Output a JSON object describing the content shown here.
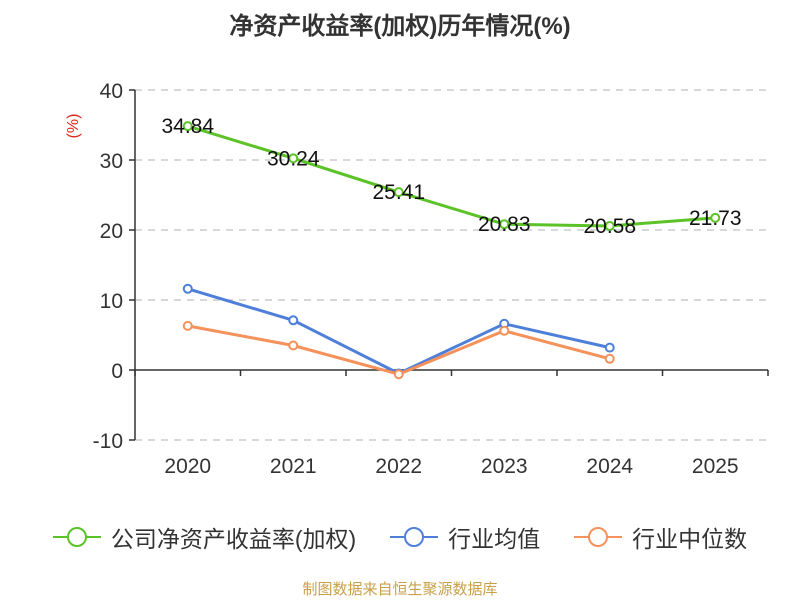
{
  "chart_data": {
    "type": "line",
    "title": "净资产收益率(加权)历年情况(%)",
    "ylabel": "(%)",
    "xlabel": "",
    "categories": [
      "2020",
      "2021",
      "2022",
      "2023",
      "2024",
      "2025"
    ],
    "ylim": [
      -10,
      40
    ],
    "yticks": [
      -10,
      0,
      10,
      20,
      30,
      40
    ],
    "grid": true,
    "legend_position": "bottom",
    "series": [
      {
        "name": "公司净资产收益率(加权)",
        "color": "#5bc227",
        "values": [
          34.84,
          30.24,
          25.41,
          20.83,
          20.58,
          21.73
        ],
        "labels": [
          "34.84",
          "30.24",
          "25.41",
          "20.83",
          "20.58",
          "21.73"
        ]
      },
      {
        "name": "行业均值",
        "color": "#4e7fd9",
        "values": [
          11.6,
          7.1,
          -0.5,
          6.6,
          3.2,
          null
        ]
      },
      {
        "name": "行业中位数",
        "color": "#f5915a",
        "values": [
          6.3,
          3.5,
          -0.6,
          5.6,
          1.6,
          null
        ]
      }
    ]
  },
  "source": "制图数据来自恒生聚源数据库"
}
